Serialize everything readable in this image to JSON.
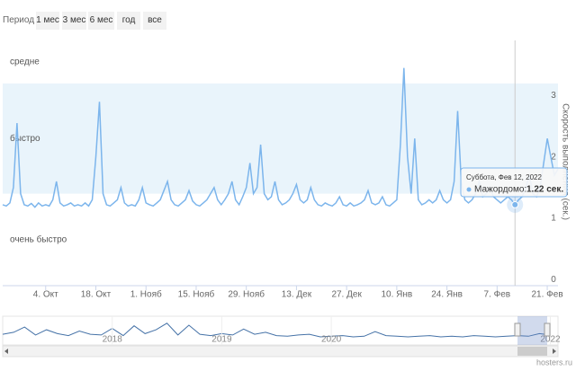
{
  "range_selector": {
    "label": "Период",
    "buttons": [
      "1 мес",
      "3 мес",
      "6 мес",
      "год",
      "все"
    ]
  },
  "credit": "hosters.ru",
  "chart_data": {
    "type": "line",
    "y_axis_title": "Скорость выполнения (сек.)",
    "xlim": [
      0,
      155
    ],
    "ylim": [
      -0.1,
      3.9
    ],
    "xticks": [
      {
        "value": 12,
        "label": "4. Окт"
      },
      {
        "value": 26,
        "label": "18. Окт"
      },
      {
        "value": 40,
        "label": "1. Нояб"
      },
      {
        "value": 54,
        "label": "15. Нояб"
      },
      {
        "value": 68,
        "label": "29. Нояб"
      },
      {
        "value": 82,
        "label": "13. Дек"
      },
      {
        "value": 96,
        "label": "27. Дек"
      },
      {
        "value": 110,
        "label": "10. Янв"
      },
      {
        "value": 124,
        "label": "24. Янв"
      },
      {
        "value": 138,
        "label": "7. Фев"
      },
      {
        "value": 152,
        "label": "21. Фев"
      }
    ],
    "yticks": [
      0,
      1,
      2,
      3
    ],
    "plot_bands": [
      {
        "label": "очень быстро",
        "from": -0.1,
        "to": 1.4,
        "color": "#ffffff"
      },
      {
        "label": "быстро",
        "from": 1.4,
        "to": 3.2,
        "color": "#e9f4fb"
      },
      {
        "label": "средне",
        "from": 3.2,
        "to": 3.9,
        "color": "#ffffff"
      }
    ],
    "x": [
      0,
      1,
      2,
      3,
      4,
      5,
      6,
      7,
      8,
      9,
      10,
      11,
      12,
      13,
      14,
      15,
      16,
      17,
      18,
      19,
      20,
      21,
      22,
      23,
      24,
      25,
      26,
      27,
      28,
      29,
      30,
      31,
      32,
      33,
      34,
      35,
      36,
      37,
      38,
      39,
      40,
      41,
      42,
      43,
      44,
      45,
      46,
      47,
      48,
      49,
      50,
      51,
      52,
      53,
      54,
      55,
      56,
      57,
      58,
      59,
      60,
      61,
      62,
      63,
      64,
      65,
      66,
      67,
      68,
      69,
      70,
      71,
      72,
      73,
      74,
      75,
      76,
      77,
      78,
      79,
      80,
      81,
      82,
      83,
      84,
      85,
      86,
      87,
      88,
      89,
      90,
      91,
      92,
      93,
      94,
      95,
      96,
      97,
      98,
      99,
      100,
      101,
      102,
      103,
      104,
      105,
      106,
      107,
      108,
      109,
      110,
      111,
      112,
      113,
      114,
      115,
      116,
      117,
      118,
      119,
      120,
      121,
      122,
      123,
      124,
      125,
      126,
      127,
      128,
      129,
      130,
      131,
      132,
      133,
      134,
      135,
      136,
      137,
      138,
      139,
      140,
      141,
      142,
      143,
      144,
      145,
      146,
      147,
      148,
      149,
      150,
      151,
      152,
      153,
      154,
      155
    ],
    "series": [
      {
        "name": "Мажордомо",
        "color": "#7cb5ec",
        "values": [
          1.22,
          1.2,
          1.25,
          1.5,
          2.55,
          1.4,
          1.22,
          1.2,
          1.24,
          1.18,
          1.25,
          1.2,
          1.22,
          1.2,
          1.3,
          1.6,
          1.25,
          1.2,
          1.22,
          1.25,
          1.2,
          1.22,
          1.2,
          1.25,
          1.2,
          1.3,
          2.0,
          2.9,
          1.4,
          1.22,
          1.2,
          1.25,
          1.3,
          1.5,
          1.25,
          1.2,
          1.22,
          1.2,
          1.3,
          1.5,
          1.25,
          1.22,
          1.2,
          1.25,
          1.3,
          1.45,
          1.6,
          1.3,
          1.22,
          1.2,
          1.25,
          1.3,
          1.45,
          1.28,
          1.22,
          1.2,
          1.25,
          1.3,
          1.4,
          1.5,
          1.3,
          1.22,
          1.3,
          1.4,
          1.6,
          1.3,
          1.22,
          1.35,
          1.5,
          1.9,
          1.4,
          1.5,
          2.2,
          1.4,
          1.3,
          1.35,
          1.6,
          1.3,
          1.22,
          1.25,
          1.3,
          1.4,
          1.55,
          1.3,
          1.25,
          1.3,
          1.5,
          1.3,
          1.22,
          1.2,
          1.25,
          1.22,
          1.2,
          1.25,
          1.35,
          1.22,
          1.2,
          1.25,
          1.2,
          1.22,
          1.25,
          1.3,
          1.45,
          1.25,
          1.22,
          1.25,
          1.35,
          1.22,
          1.2,
          1.25,
          1.3,
          2.2,
          3.45,
          2.0,
          1.4,
          2.3,
          1.3,
          1.22,
          1.25,
          1.3,
          1.25,
          1.3,
          1.45,
          1.3,
          1.25,
          1.3,
          1.6,
          2.75,
          1.6,
          1.3,
          1.25,
          1.3,
          1.4,
          1.6,
          1.35,
          1.4,
          1.5,
          1.35,
          1.3,
          1.25,
          1.3,
          1.35,
          1.3,
          1.22,
          1.3,
          1.35,
          1.5,
          1.7,
          1.4,
          1.35,
          1.5,
          1.9,
          2.3,
          2.0,
          1.7,
          1.8
        ]
      }
    ],
    "tooltip": {
      "x": 143,
      "date": "Суббота, Фев 12, 2022",
      "label": "Мажордомо:",
      "value_label": "1.22 сек."
    },
    "navigator": {
      "xlim": [
        2017,
        2022.07
      ],
      "ylim": [
        0,
        4
      ],
      "xticks": [
        2018,
        2019,
        2020,
        2022
      ],
      "x": [
        2017.0,
        2017.1,
        2017.2,
        2017.3,
        2017.4,
        2017.5,
        2017.6,
        2017.7,
        2017.8,
        2017.9,
        2018.0,
        2018.1,
        2018.2,
        2018.3,
        2018.4,
        2018.5,
        2018.6,
        2018.7,
        2018.8,
        2018.9,
        2019.0,
        2019.1,
        2019.2,
        2019.3,
        2019.4,
        2019.5,
        2019.6,
        2019.7,
        2019.8,
        2019.9,
        2020.0,
        2020.1,
        2020.2,
        2020.3,
        2020.4,
        2020.5,
        2020.6,
        2020.7,
        2020.8,
        2020.9,
        2021.0,
        2021.1,
        2021.2,
        2021.3,
        2021.4,
        2021.5,
        2021.6,
        2021.7,
        2021.8,
        2021.9,
        2022.0
      ],
      "values": [
        1.5,
        1.8,
        2.6,
        1.4,
        2.2,
        1.6,
        1.3,
        2.0,
        1.5,
        1.4,
        2.4,
        1.3,
        2.8,
        1.6,
        2.2,
        3.2,
        1.4,
        2.9,
        1.5,
        1.3,
        1.6,
        1.4,
        2.3,
        1.5,
        1.8,
        1.3,
        1.2,
        1.4,
        1.5,
        1.1,
        1.2,
        1.3,
        1.1,
        1.2,
        1.9,
        1.3,
        1.2,
        1.1,
        1.2,
        1.3,
        1.1,
        1.2,
        1.1,
        1.3,
        1.2,
        1.1,
        1.2,
        1.3,
        1.2,
        1.6,
        1.4
      ]
    }
  }
}
